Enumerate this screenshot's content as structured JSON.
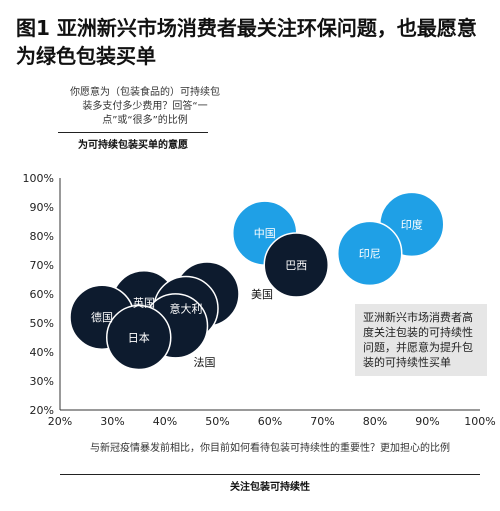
{
  "title": "图1 亚洲新兴市场消费者最关注环保问题，也最愿意为绿色包装买单",
  "y_question": "你愿意为（包装食品的）可持续包装多支付多少费用？回答“一点”或“很多”的比例",
  "y_axis_title": "为可持续包装买单的意愿",
  "x_question": "与新冠疫情暴发前相比，你目前如何看待包装可持续性的重要性？更加担心的比例",
  "x_axis_title": "关注包装可持续性",
  "note": "亚洲新兴市场消费者高度关注包装的可持续性问题，并愿意为提升包装的可持续性买单",
  "colors": {
    "dark": "#0d1b2e",
    "highlight": "#1fa0e6"
  },
  "chart_data": {
    "type": "scatter",
    "xlabel": "关注包装可持续性",
    "ylabel": "为可持续包装买单的意愿",
    "xlim": [
      20,
      100
    ],
    "ylim": [
      20,
      100
    ],
    "xticks": [
      "20%",
      "30%",
      "40%",
      "50%",
      "60%",
      "70%",
      "80%",
      "90%",
      "100%"
    ],
    "yticks": [
      "20%",
      "30%",
      "40%",
      "50%",
      "60%",
      "70%",
      "80%",
      "90%",
      "100%"
    ],
    "points": [
      {
        "label": "中国",
        "x": 59,
        "y": 81,
        "group": "highlight"
      },
      {
        "label": "印度",
        "x": 87,
        "y": 84,
        "group": "highlight"
      },
      {
        "label": "印尼",
        "x": 79,
        "y": 74,
        "group": "highlight"
      },
      {
        "label": "巴西",
        "x": 65,
        "y": 70,
        "group": "dark"
      },
      {
        "label": "美国",
        "x": 48,
        "y": 60,
        "group": "dark"
      },
      {
        "label": "英国",
        "x": 36,
        "y": 57,
        "group": "dark"
      },
      {
        "label": "意大利",
        "x": 44,
        "y": 55,
        "group": "dark"
      },
      {
        "label": "德国",
        "x": 28,
        "y": 52,
        "group": "dark"
      },
      {
        "label": "法国",
        "x": 42,
        "y": 49,
        "group": "dark"
      },
      {
        "label": "日本",
        "x": 35,
        "y": 45,
        "group": "dark"
      }
    ]
  }
}
